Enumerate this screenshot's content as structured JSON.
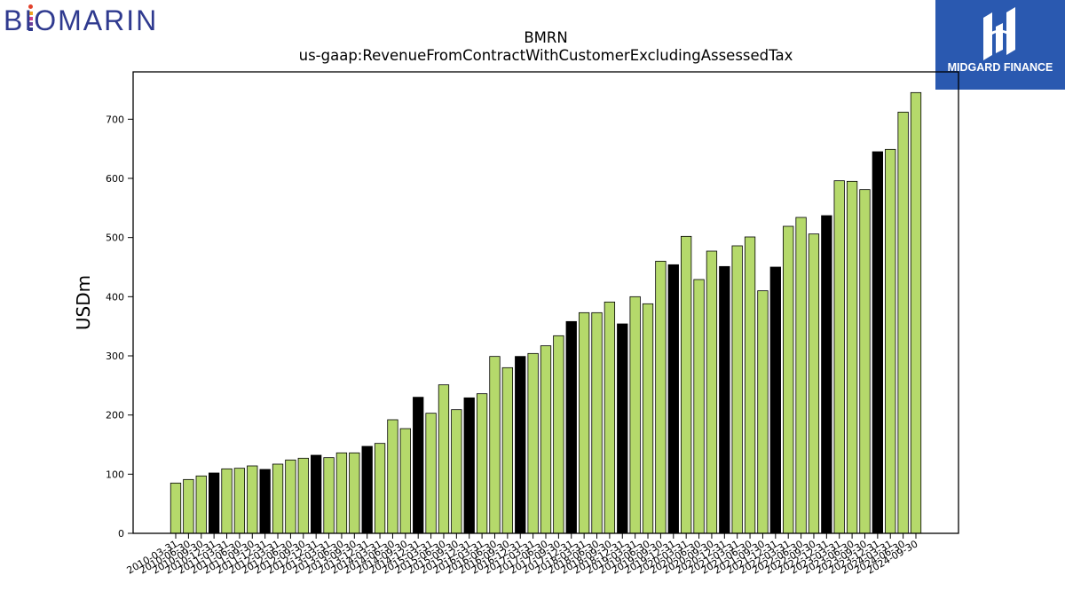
{
  "brand_left": {
    "text": "BIOMARIN",
    "color": "#2f3a8f"
  },
  "brand_right": {
    "text": "MIDGARD FINANCE",
    "background": "#2a59b0"
  },
  "chart_data": {
    "type": "bar",
    "title": "BMRN",
    "subtitle": "us-gaap:RevenueFromContractWithCustomerExcludingAssessedTax",
    "ylabel": "USDm",
    "xlabel": "",
    "ylim": [
      0,
      780
    ],
    "yticks": [
      0,
      100,
      200,
      300,
      400,
      500,
      600,
      700
    ],
    "grid": false,
    "colors": {
      "quarter": "#b5d96b",
      "annual": "#000000",
      "edge": "#000000"
    },
    "categories": [
      "2010-03-31",
      "2010-06-30",
      "2010-09-30",
      "2010-12-31",
      "2011-03-31",
      "2011-06-30",
      "2011-09-30",
      "2011-12-31",
      "2012-03-31",
      "2012-06-30",
      "2012-09-30",
      "2012-12-31",
      "2013-03-31",
      "2013-06-30",
      "2013-09-30",
      "2013-12-31",
      "2014-03-31",
      "2014-06-30",
      "2014-09-30",
      "2014-12-31",
      "2015-03-31",
      "2015-06-30",
      "2015-09-30",
      "2015-12-31",
      "2016-03-31",
      "2016-06-30",
      "2016-09-30",
      "2016-12-31",
      "2017-03-31",
      "2017-06-30",
      "2017-09-30",
      "2017-12-31",
      "2018-03-31",
      "2018-06-30",
      "2018-09-30",
      "2018-12-31",
      "2019-03-31",
      "2019-06-30",
      "2019-09-30",
      "2019-12-31",
      "2020-03-31",
      "2020-06-30",
      "2020-09-30",
      "2020-12-31",
      "2021-03-31",
      "2021-06-30",
      "2021-09-30",
      "2021-12-31",
      "2022-03-31",
      "2022-06-30",
      "2022-09-30",
      "2022-12-31",
      "2023-03-31",
      "2023-06-30",
      "2023-09-30",
      "2023-12-31",
      "2024-03-31",
      "2024-06-30",
      "2024-09-30"
    ],
    "values": [
      85,
      91,
      97,
      102,
      109,
      110,
      114,
      108,
      117,
      124,
      127,
      132,
      128,
      136,
      136,
      147,
      152,
      192,
      177,
      230,
      203,
      251,
      209,
      229,
      236,
      299,
      280,
      299,
      304,
      317,
      334,
      358,
      373,
      373,
      391,
      354,
      400,
      388,
      460,
      454,
      502,
      429,
      477,
      451,
      486,
      501,
      410,
      450,
      519,
      534,
      506,
      537,
      596,
      595,
      581,
      645,
      649,
      712,
      745
    ],
    "annual_marker": [
      false,
      false,
      false,
      true,
      false,
      false,
      false,
      true,
      false,
      false,
      false,
      true,
      false,
      false,
      false,
      true,
      false,
      false,
      false,
      true,
      false,
      false,
      false,
      true,
      false,
      false,
      false,
      true,
      false,
      false,
      false,
      true,
      false,
      false,
      false,
      true,
      false,
      false,
      false,
      true,
      false,
      false,
      false,
      true,
      false,
      false,
      false,
      true,
      false,
      false,
      false,
      true,
      false,
      false,
      false,
      true,
      false,
      false,
      false
    ]
  }
}
